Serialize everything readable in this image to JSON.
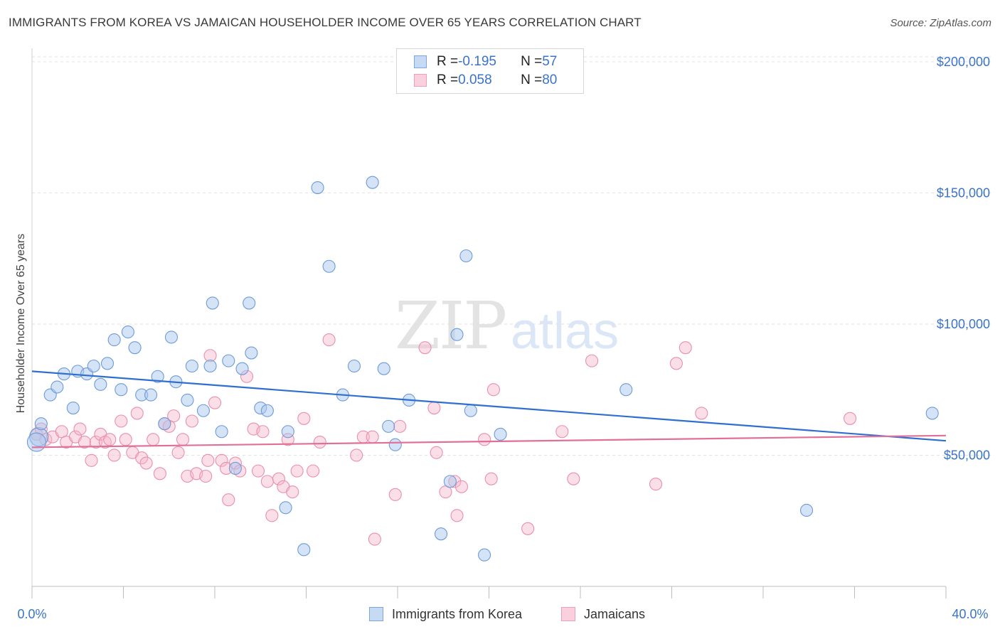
{
  "header": {
    "title": "IMMIGRANTS FROM KOREA VS JAMAICAN HOUSEHOLDER INCOME OVER 65 YEARS CORRELATION CHART",
    "source": "Source: ZipAtlas.com"
  },
  "watermark": {
    "part1": "ZIP",
    "part2": "atlas"
  },
  "legend": {
    "rows": [
      {
        "r_label": "R = ",
        "r_value": "-0.195",
        "n_label": "N = ",
        "n_value": "57",
        "color": "#a9c7ee",
        "stroke": "#6b9ad8"
      },
      {
        "r_label": "R = ",
        "r_value": "0.058",
        "n_label": "N = ",
        "n_value": "80",
        "color": "#f6b8cb",
        "stroke": "#e88aa8"
      }
    ]
  },
  "colors": {
    "korea_fill": "#a9c7ee",
    "korea_stroke": "#6d9bd9",
    "korea_line": "#2f6fce",
    "jam_fill": "#f6b8cb",
    "jam_stroke": "#ea8fab",
    "jam_line": "#e0709a",
    "axis_label": "#3a73c9",
    "grid": "#e2e2e2"
  },
  "chart_data": {
    "type": "scatter",
    "title": "IMMIGRANTS FROM KOREA VS JAMAICAN HOUSEHOLDER INCOME OVER 65 YEARS CORRELATION CHART",
    "xlabel": "",
    "ylabel": "Householder Income Over 65 years",
    "xlim": [
      0,
      40
    ],
    "ylim": [
      0,
      210000
    ],
    "x_tick_labels": [
      "0.0%",
      "40.0%"
    ],
    "y_ticks": [
      50000,
      100000,
      150000,
      200000
    ],
    "y_tick_labels": [
      "$50,000",
      "$100,000",
      "$150,000",
      "$200,000"
    ],
    "grid": "horizontal dashed",
    "legend_position": "bottom-center",
    "series": [
      {
        "name": "Immigrants from Korea",
        "r": -0.195,
        "n": 57,
        "trend": [
          [
            0,
            82000
          ],
          [
            40,
            55500
          ]
        ],
        "points": [
          [
            0.3,
            57000
          ],
          [
            0.4,
            62000
          ],
          [
            0.8,
            73000
          ],
          [
            1.1,
            76000
          ],
          [
            1.4,
            81000
          ],
          [
            1.8,
            68000
          ],
          [
            2.0,
            82000
          ],
          [
            2.4,
            81000
          ],
          [
            2.7,
            84000
          ],
          [
            3.0,
            77000
          ],
          [
            3.3,
            85000
          ],
          [
            3.6,
            94000
          ],
          [
            3.9,
            75000
          ],
          [
            4.2,
            97000
          ],
          [
            4.5,
            91000
          ],
          [
            4.8,
            73000
          ],
          [
            5.2,
            73000
          ],
          [
            5.5,
            80000
          ],
          [
            5.8,
            62000
          ],
          [
            6.1,
            95000
          ],
          [
            6.3,
            78000
          ],
          [
            6.8,
            71000
          ],
          [
            7.0,
            84000
          ],
          [
            7.5,
            67000
          ],
          [
            7.8,
            84000
          ],
          [
            7.9,
            108000
          ],
          [
            8.3,
            59000
          ],
          [
            8.6,
            86000
          ],
          [
            8.9,
            45000
          ],
          [
            9.2,
            83000
          ],
          [
            9.5,
            108000
          ],
          [
            9.6,
            89000
          ],
          [
            10.0,
            68000
          ],
          [
            10.3,
            67000
          ],
          [
            11.1,
            30000
          ],
          [
            11.2,
            59000
          ],
          [
            11.9,
            14000
          ],
          [
            12.5,
            152000
          ],
          [
            13.0,
            122000
          ],
          [
            13.6,
            73000
          ],
          [
            14.1,
            84000
          ],
          [
            14.9,
            154000
          ],
          [
            15.4,
            83000
          ],
          [
            15.6,
            61000
          ],
          [
            15.9,
            54000
          ],
          [
            16.5,
            71000
          ],
          [
            17.9,
            20000
          ],
          [
            18.3,
            40000
          ],
          [
            18.6,
            96000
          ],
          [
            19.0,
            126000
          ],
          [
            19.2,
            67000
          ],
          [
            19.8,
            12000
          ],
          [
            20.5,
            58000
          ],
          [
            26.0,
            75000
          ],
          [
            33.9,
            29000
          ],
          [
            39.4,
            66000
          ],
          [
            0.2,
            55000
          ]
        ]
      },
      {
        "name": "Jamaicans",
        "r": 0.058,
        "n": 80,
        "trend": [
          [
            0,
            53000
          ],
          [
            40,
            57500
          ]
        ],
        "points": [
          [
            0.2,
            58000
          ],
          [
            0.4,
            60000
          ],
          [
            0.6,
            56000
          ],
          [
            0.9,
            57000
          ],
          [
            1.3,
            59000
          ],
          [
            1.5,
            55000
          ],
          [
            1.9,
            57000
          ],
          [
            2.1,
            60000
          ],
          [
            2.3,
            55000
          ],
          [
            2.6,
            48000
          ],
          [
            2.8,
            55000
          ],
          [
            3.0,
            58000
          ],
          [
            3.2,
            55000
          ],
          [
            3.4,
            56000
          ],
          [
            3.6,
            50000
          ],
          [
            3.9,
            63000
          ],
          [
            4.1,
            56000
          ],
          [
            4.4,
            51000
          ],
          [
            4.6,
            66000
          ],
          [
            4.8,
            49000
          ],
          [
            5.0,
            47000
          ],
          [
            5.3,
            56000
          ],
          [
            5.6,
            43000
          ],
          [
            5.8,
            62000
          ],
          [
            6.0,
            61000
          ],
          [
            6.2,
            65000
          ],
          [
            6.4,
            51000
          ],
          [
            6.6,
            56000
          ],
          [
            6.8,
            42000
          ],
          [
            7.0,
            63000
          ],
          [
            7.2,
            43000
          ],
          [
            7.6,
            42000
          ],
          [
            7.7,
            48000
          ],
          [
            7.8,
            88000
          ],
          [
            8.0,
            70000
          ],
          [
            8.3,
            48000
          ],
          [
            8.5,
            45000
          ],
          [
            8.6,
            33000
          ],
          [
            8.9,
            47000
          ],
          [
            9.1,
            44000
          ],
          [
            9.4,
            80000
          ],
          [
            9.7,
            60000
          ],
          [
            9.9,
            44000
          ],
          [
            10.1,
            59000
          ],
          [
            10.3,
            40000
          ],
          [
            10.5,
            27000
          ],
          [
            10.8,
            41000
          ],
          [
            11.0,
            38000
          ],
          [
            11.2,
            56000
          ],
          [
            11.4,
            36000
          ],
          [
            11.6,
            44000
          ],
          [
            11.9,
            64000
          ],
          [
            12.3,
            44000
          ],
          [
            12.6,
            55000
          ],
          [
            13.0,
            94000
          ],
          [
            14.2,
            50000
          ],
          [
            14.5,
            57000
          ],
          [
            14.9,
            57000
          ],
          [
            15.0,
            18000
          ],
          [
            15.9,
            35000
          ],
          [
            16.1,
            61000
          ],
          [
            17.2,
            91000
          ],
          [
            17.6,
            68000
          ],
          [
            17.7,
            51000
          ],
          [
            18.1,
            36000
          ],
          [
            18.5,
            40000
          ],
          [
            18.6,
            27000
          ],
          [
            18.8,
            38000
          ],
          [
            19.8,
            56000
          ],
          [
            20.1,
            41000
          ],
          [
            20.2,
            75000
          ],
          [
            21.7,
            22000
          ],
          [
            23.2,
            59000
          ],
          [
            23.7,
            41000
          ],
          [
            24.5,
            86000
          ],
          [
            27.3,
            39000
          ],
          [
            28.2,
            85000
          ],
          [
            28.6,
            91000
          ],
          [
            29.3,
            66000
          ],
          [
            35.8,
            64000
          ]
        ]
      }
    ]
  },
  "bottom_legend": {
    "korea_label": "Immigrants from Korea",
    "jam_label": "Jamaicans"
  }
}
